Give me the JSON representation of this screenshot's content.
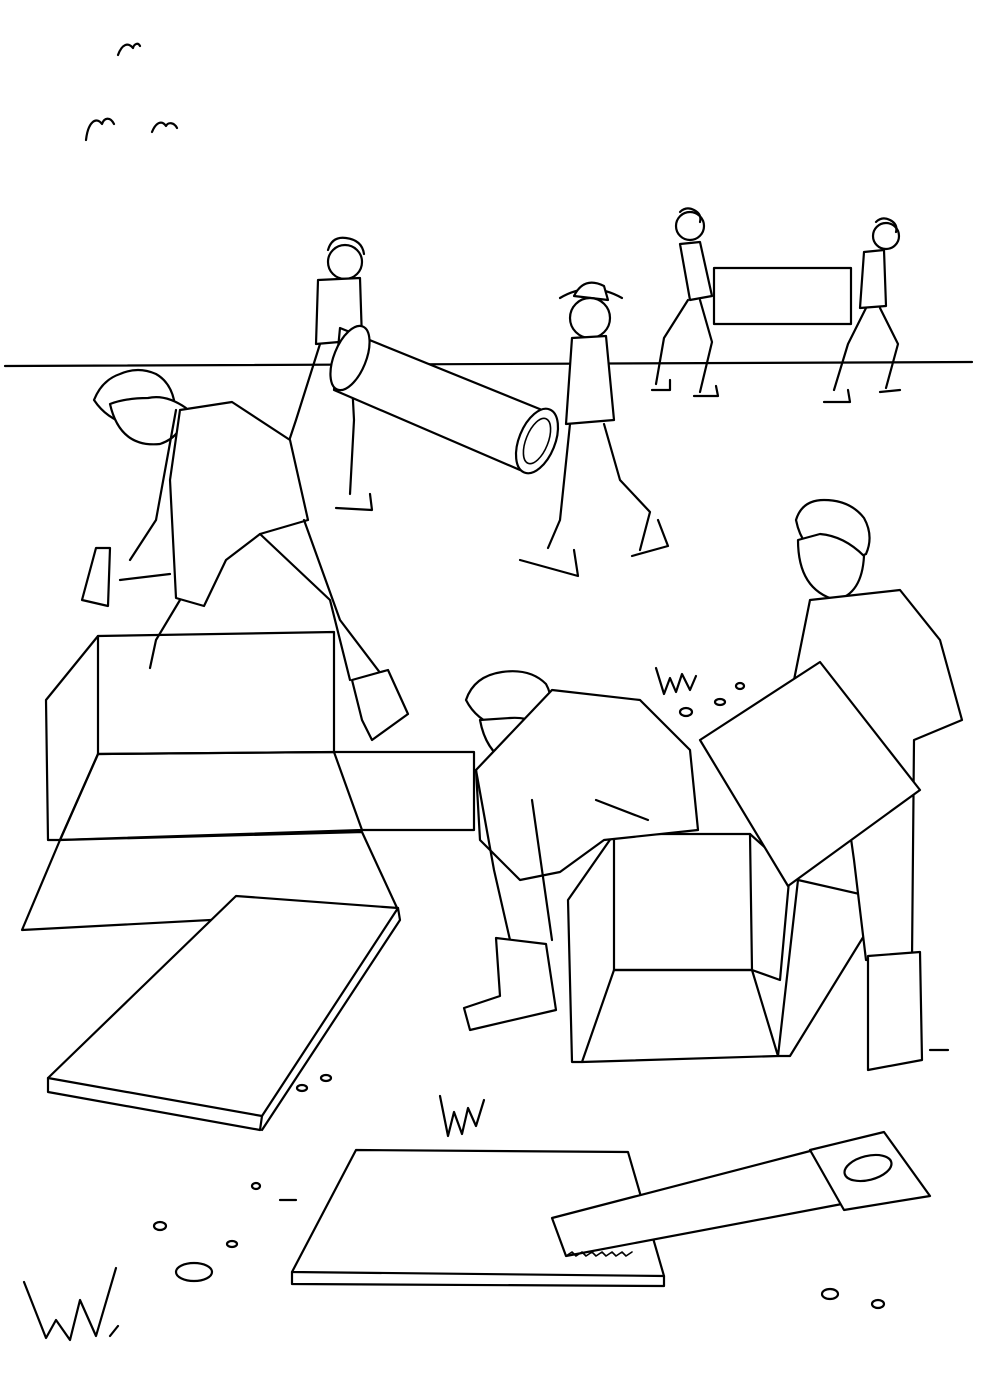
{
  "image": {
    "kind": "line-art coloring illustration",
    "colors": {
      "ink": "#000000",
      "paper": "#ffffff"
    }
  }
}
